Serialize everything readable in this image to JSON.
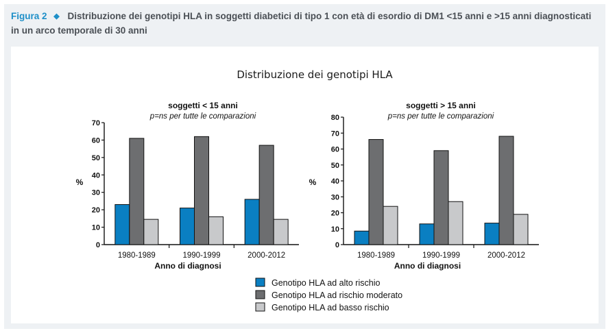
{
  "figure": {
    "label": "Figura 2",
    "caption": "Distribuzione dei genotipi HLA in soggetti diabetici di tipo 1 con età di esordio di DM1 <15 anni e >15 anni diagnosticati in un arco temporale di 30 anni"
  },
  "colors": {
    "alto": "#0a7fc2",
    "moderato": "#6d6e70",
    "basso": "#c8c9cb",
    "accent": "#1e8fc8"
  },
  "chart_data": {
    "type": "bar",
    "title": "Distribuzione dei genotipi HLA",
    "legend_position": "bottom-center",
    "legend": [
      "Genotipo HLA ad alto rischio",
      "Genotipo HLA ad rischio moderato",
      "Genotipo HLA ad basso rischio"
    ],
    "charts": [
      {
        "subtitle": "soggetti < 15 anni",
        "note": "p=ns per tutte le comparazioni",
        "xlabel": "Anno di diagnosi",
        "ylabel": "%",
        "ylim": [
          0,
          70
        ],
        "yticks": [
          0,
          10,
          20,
          30,
          40,
          50,
          60,
          70
        ],
        "categories": [
          "1980-1989",
          "1990-1999",
          "2000-2012"
        ],
        "series": [
          {
            "name": "Genotipo HLA ad alto rischio",
            "values": [
              23,
              21,
              26
            ]
          },
          {
            "name": "Genotipo HLA ad rischio moderato",
            "values": [
              61,
              62,
              57
            ]
          },
          {
            "name": "Genotipo HLA ad basso rischio",
            "values": [
              14.5,
              16,
              14.5
            ]
          }
        ]
      },
      {
        "subtitle": "soggetti > 15 anni",
        "note": "p=ns per tutte le comparazioni",
        "xlabel": "Anno di diagnosi",
        "ylabel": "%",
        "ylim": [
          0,
          80
        ],
        "yticks": [
          0,
          10,
          20,
          30,
          40,
          50,
          60,
          70,
          80
        ],
        "categories": [
          "1980-1989",
          "1990-1999",
          "2000-2012"
        ],
        "series": [
          {
            "name": "Genotipo HLA ad alto rischio",
            "values": [
              8.5,
              13,
              13.5
            ]
          },
          {
            "name": "Genotipo HLA ad rischio moderato",
            "values": [
              66,
              59,
              68
            ]
          },
          {
            "name": "Genotipo HLA ad basso rischio",
            "values": [
              24,
              27,
              19
            ]
          }
        ]
      }
    ]
  }
}
